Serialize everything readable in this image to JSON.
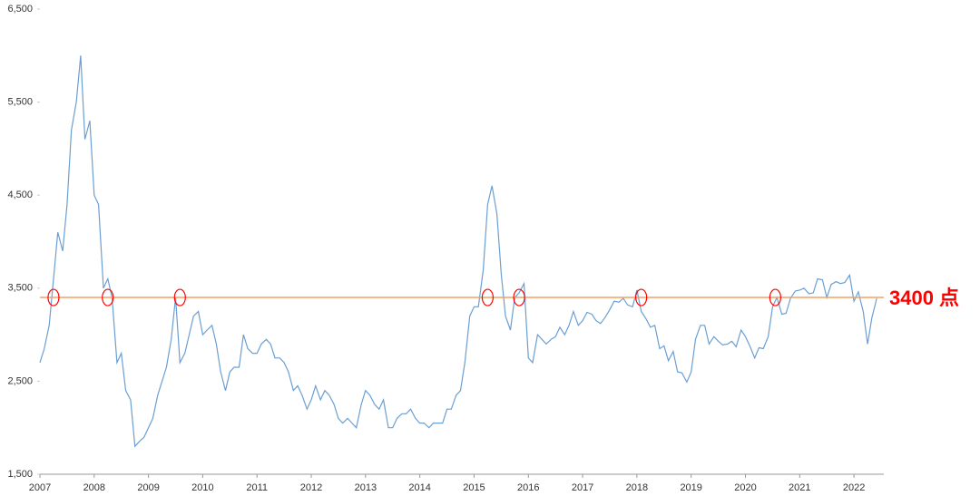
{
  "chart_data": {
    "type": "line",
    "x": [
      2007,
      2007.08,
      2007.17,
      2007.25,
      2007.33,
      2007.42,
      2007.5,
      2007.58,
      2007.67,
      2007.75,
      2007.83,
      2007.92,
      2008,
      2008.08,
      2008.17,
      2008.25,
      2008.33,
      2008.42,
      2008.5,
      2008.58,
      2008.67,
      2008.75,
      2008.83,
      2008.92,
      2009,
      2009.08,
      2009.17,
      2009.25,
      2009.33,
      2009.42,
      2009.5,
      2009.58,
      2009.67,
      2009.75,
      2009.83,
      2009.92,
      2010,
      2010.08,
      2010.17,
      2010.25,
      2010.33,
      2010.42,
      2010.5,
      2010.58,
      2010.67,
      2010.75,
      2010.83,
      2010.92,
      2011,
      2011.08,
      2011.17,
      2011.25,
      2011.33,
      2011.42,
      2011.5,
      2011.58,
      2011.67,
      2011.75,
      2011.83,
      2011.92,
      2012,
      2012.08,
      2012.17,
      2012.25,
      2012.33,
      2012.42,
      2012.5,
      2012.58,
      2012.67,
      2012.75,
      2012.83,
      2012.92,
      2013,
      2013.08,
      2013.17,
      2013.25,
      2013.33,
      2013.42,
      2013.5,
      2013.58,
      2013.67,
      2013.75,
      2013.83,
      2013.92,
      2014,
      2014.08,
      2014.17,
      2014.25,
      2014.33,
      2014.42,
      2014.5,
      2014.58,
      2014.67,
      2014.75,
      2014.83,
      2014.92,
      2015,
      2015.08,
      2015.17,
      2015.25,
      2015.33,
      2015.42,
      2015.5,
      2015.58,
      2015.67,
      2015.75,
      2015.83,
      2015.92,
      2016,
      2016.08,
      2016.17,
      2016.25,
      2016.33,
      2016.42,
      2016.5,
      2016.58,
      2016.67,
      2016.75,
      2016.83,
      2016.92,
      2017,
      2017.08,
      2017.17,
      2017.25,
      2017.33,
      2017.42,
      2017.5,
      2017.58,
      2017.67,
      2017.75,
      2017.83,
      2017.92,
      2018,
      2018.08,
      2018.17,
      2018.25,
      2018.33,
      2018.42,
      2018.5,
      2018.58,
      2018.67,
      2018.75,
      2018.83,
      2018.92,
      2019,
      2019.08,
      2019.17,
      2019.25,
      2019.33,
      2019.42,
      2019.5,
      2019.58,
      2019.67,
      2019.75,
      2019.83,
      2019.92,
      2020,
      2020.08,
      2020.17,
      2020.25,
      2020.33,
      2020.42,
      2020.5,
      2020.58,
      2020.67,
      2020.75,
      2020.83,
      2020.92,
      2021,
      2021.08,
      2021.17,
      2021.25,
      2021.33,
      2021.42,
      2021.5,
      2021.58,
      2021.67,
      2021.75,
      2021.83,
      2021.92,
      2022,
      2022.08,
      2022.17,
      2022.25,
      2022.33,
      2022.42
    ],
    "values": [
      2700,
      2850,
      3100,
      3600,
      4100,
      3900,
      4400,
      5200,
      5500,
      6000,
      5100,
      5300,
      4500,
      4400,
      3500,
      3600,
      3400,
      2700,
      2800,
      2400,
      2300,
      1800,
      1850,
      1900,
      2000,
      2100,
      2350,
      2500,
      2650,
      2950,
      3400,
      2700,
      2800,
      3000,
      3200,
      3250,
      3000,
      3050,
      3100,
      2900,
      2600,
      2400,
      2600,
      2650,
      2650,
      3000,
      2850,
      2800,
      2800,
      2900,
      2950,
      2900,
      2750,
      2750,
      2700,
      2600,
      2400,
      2450,
      2350,
      2200,
      2300,
      2450,
      2300,
      2400,
      2350,
      2250,
      2100,
      2050,
      2100,
      2050,
      2000,
      2250,
      2400,
      2350,
      2250,
      2200,
      2300,
      2000,
      2000,
      2100,
      2150,
      2150,
      2200,
      2100,
      2050,
      2050,
      2000,
      2050,
      2050,
      2050,
      2200,
      2200,
      2350,
      2400,
      2700,
      3200,
      3300,
      3300,
      3700,
      4400,
      4600,
      4300,
      3650,
      3200,
      3050,
      3400,
      3450,
      3550,
      2750,
      2700,
      3000,
      2950,
      2900,
      2950,
      2980,
      3080,
      3000,
      3100,
      3250,
      3100,
      3150,
      3240,
      3220,
      3150,
      3120,
      3190,
      3270,
      3360,
      3350,
      3390,
      3320,
      3300,
      3480,
      3250,
      3170,
      3080,
      3100,
      2850,
      2880,
      2720,
      2820,
      2600,
      2590,
      2490,
      2600,
      2950,
      3100,
      3100,
      2900,
      2980,
      2930,
      2890,
      2900,
      2930,
      2870,
      3050,
      2980,
      2880,
      2750,
      2860,
      2850,
      2980,
      3300,
      3400,
      3220,
      3230,
      3390,
      3470,
      3480,
      3500,
      3440,
      3450,
      3600,
      3590,
      3400,
      3540,
      3570,
      3550,
      3560,
      3640,
      3360,
      3460,
      3250,
      2900,
      3180,
      3390
    ],
    "color": "#6b9fd3",
    "xlim": [
      2007,
      2022.55
    ],
    "xticks": [
      2007,
      2008,
      2009,
      2010,
      2011,
      2012,
      2013,
      2014,
      2015,
      2016,
      2017,
      2018,
      2019,
      2020,
      2021,
      2022
    ],
    "ylim": [
      1500,
      6500
    ],
    "yticks": [
      {
        "value": 1500,
        "label": "1,500"
      },
      {
        "value": 2500,
        "label": "2,500"
      },
      {
        "value": 3500,
        "label": "3,500"
      },
      {
        "value": 4500,
        "label": "4,500"
      },
      {
        "value": 5500,
        "label": "5,500"
      },
      {
        "value": 6500,
        "label": "6,500"
      }
    ],
    "reference_line": {
      "value": 3400,
      "label": "3400 点",
      "color": "#f4a060",
      "label_color": "#ff0000"
    },
    "highlights": {
      "x": [
        2007.25,
        2008.25,
        2009.58,
        2015.25,
        2015.83,
        2018.08,
        2020.55
      ],
      "color": "#ff0000"
    }
  }
}
